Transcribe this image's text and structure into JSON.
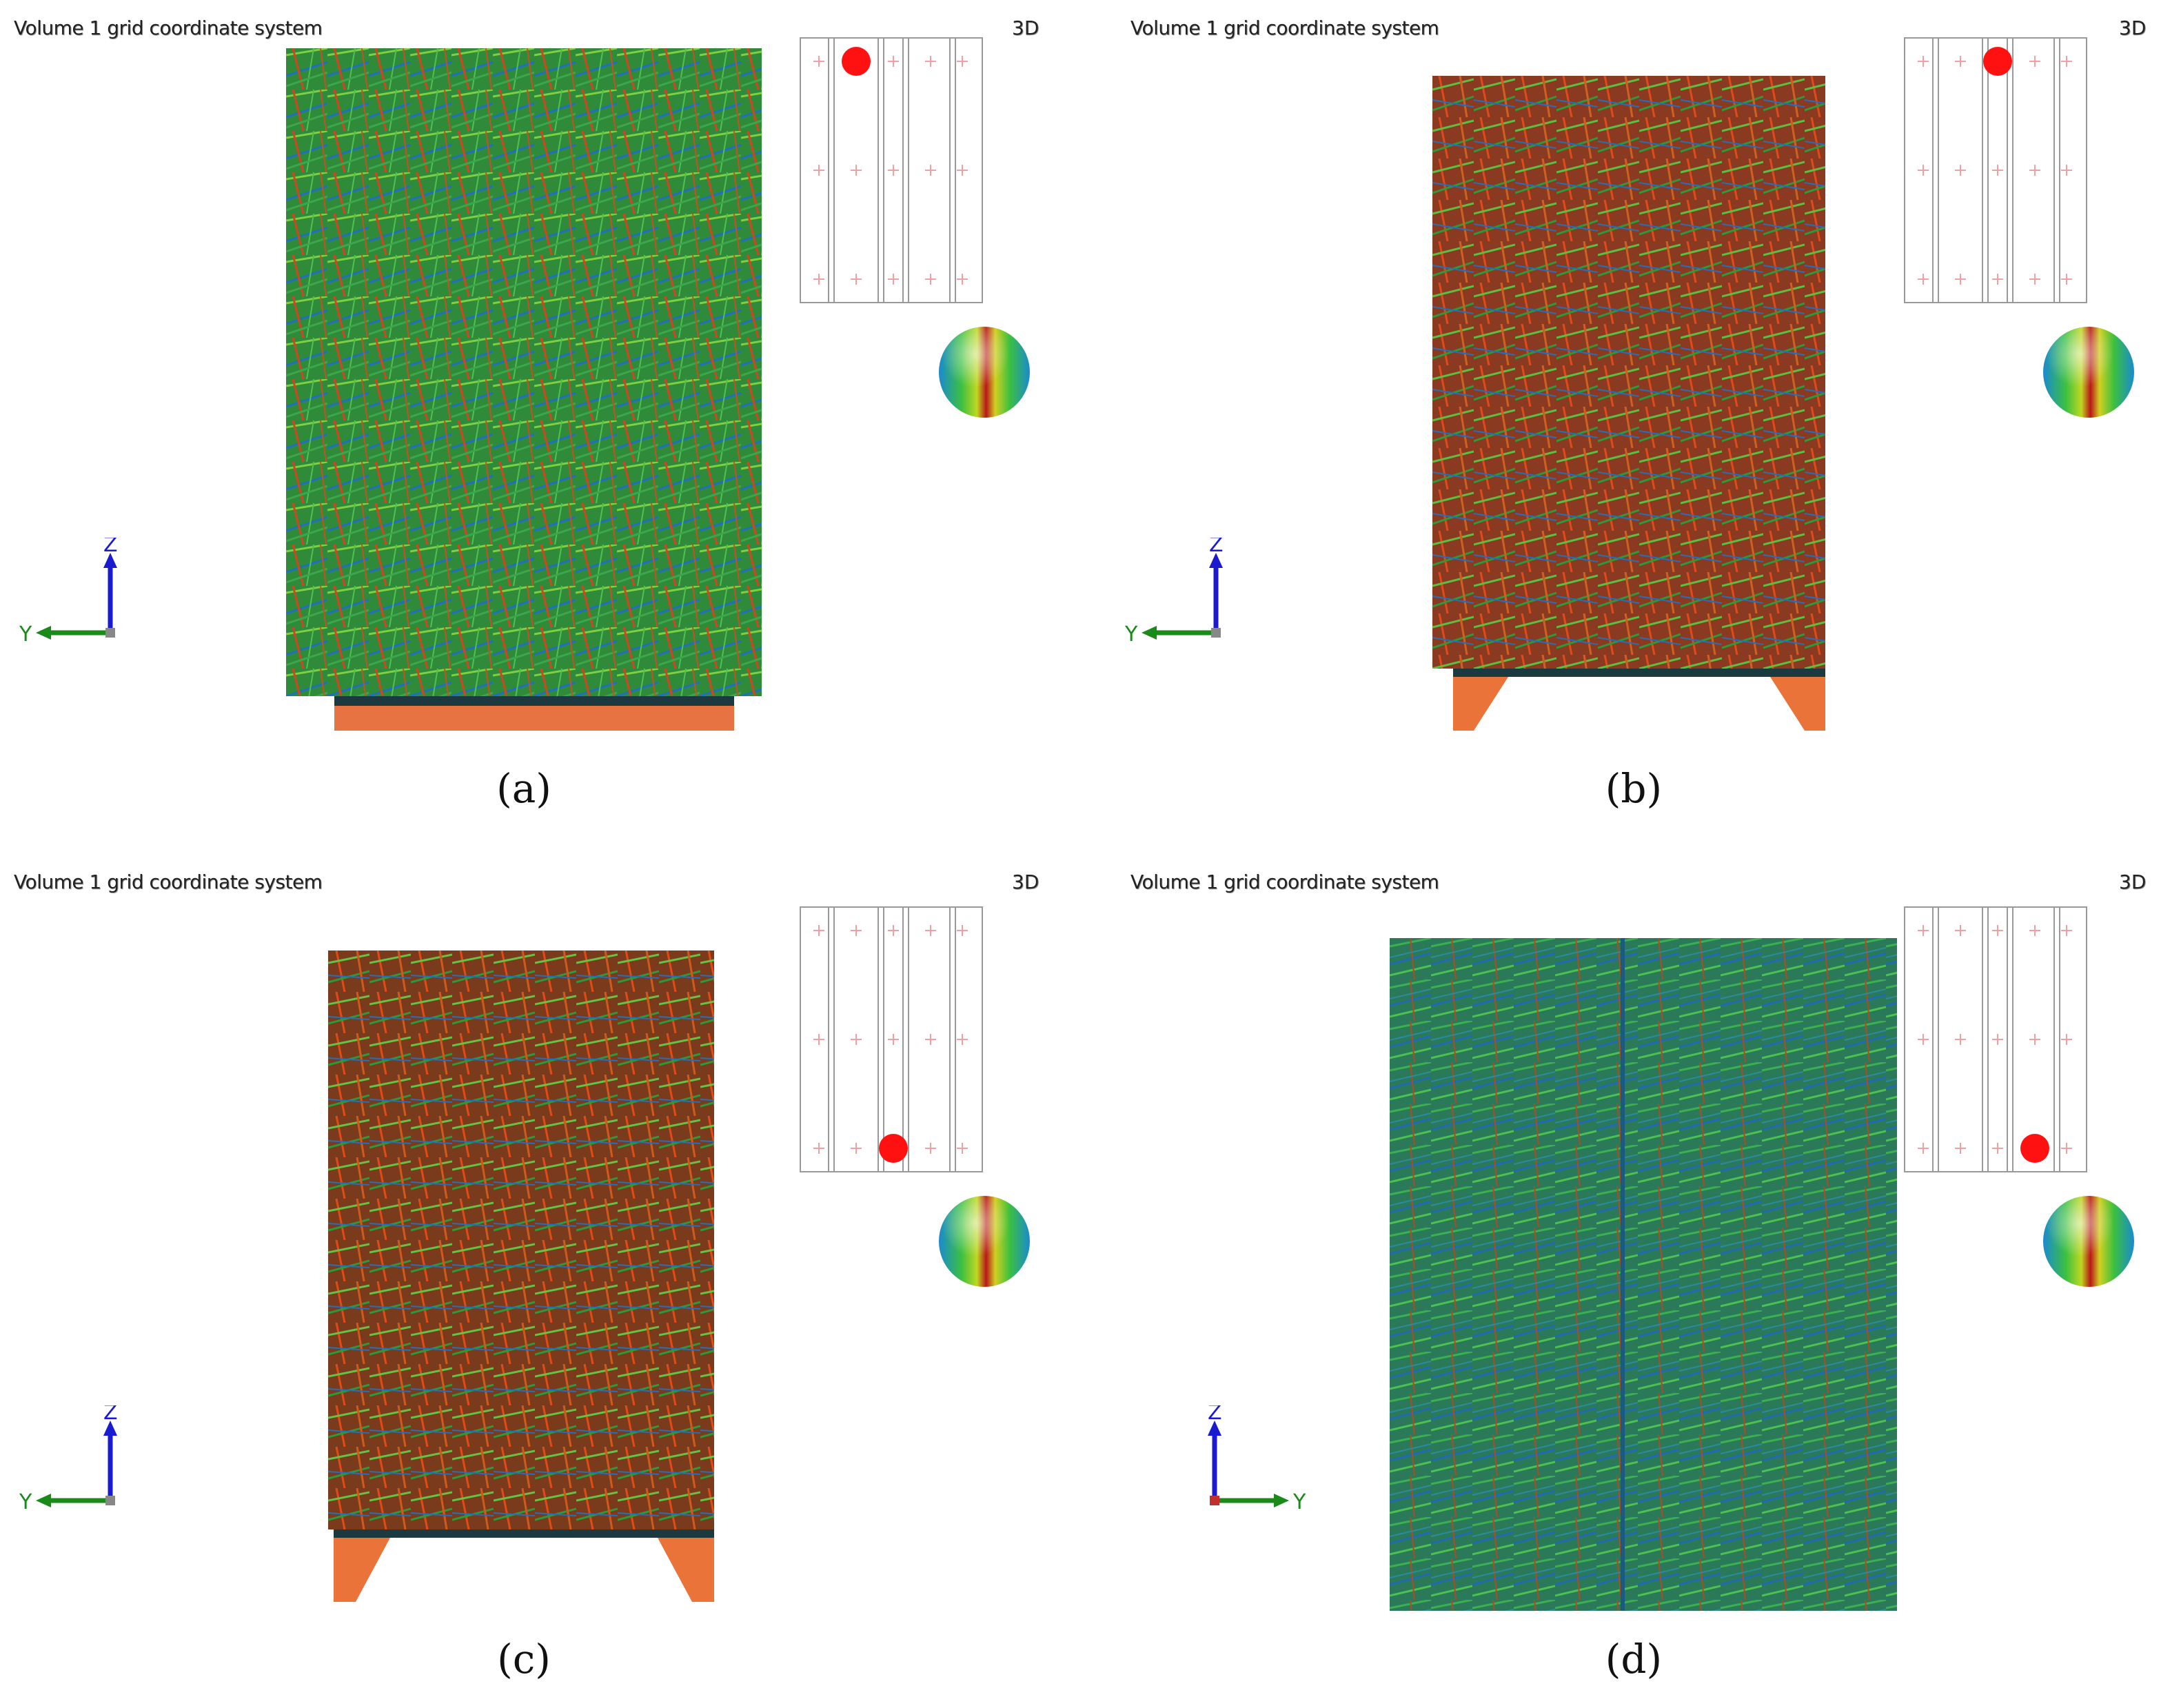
{
  "panels": [
    {
      "id": "a",
      "title": "Volume 1 grid coordinate system",
      "mode": "3D",
      "caption": "(a)",
      "marker": {
        "row": 0,
        "col": 1
      },
      "axis_y_direction": "left",
      "axes": {
        "z": "Z",
        "y": "Y"
      }
    },
    {
      "id": "b",
      "title": "Volume 1 grid coordinate system",
      "mode": "3D",
      "caption": "(b)",
      "marker": {
        "row": 0,
        "col": 2
      },
      "axis_y_direction": "left",
      "axes": {
        "z": "Z",
        "y": "Y"
      }
    },
    {
      "id": "c",
      "title": "Volume 1 grid coordinate system",
      "mode": "3D",
      "caption": "(c)",
      "marker": {
        "row": 2,
        "col": 2
      },
      "axis_y_direction": "left",
      "axes": {
        "z": "Z",
        "y": "Y"
      }
    },
    {
      "id": "d",
      "title": "Volume 1 grid coordinate system",
      "mode": "3D",
      "caption": "(d)",
      "marker": {
        "row": 2,
        "col": 3
      },
      "axis_y_direction": "right",
      "axes": {
        "z": "Z",
        "y": "Y"
      }
    }
  ],
  "colors": {
    "axis_z": "#1a1ad0",
    "axis_y": "#1a8a1a",
    "marker": "#ff1111",
    "grid_cross": "#f0a0a0"
  }
}
